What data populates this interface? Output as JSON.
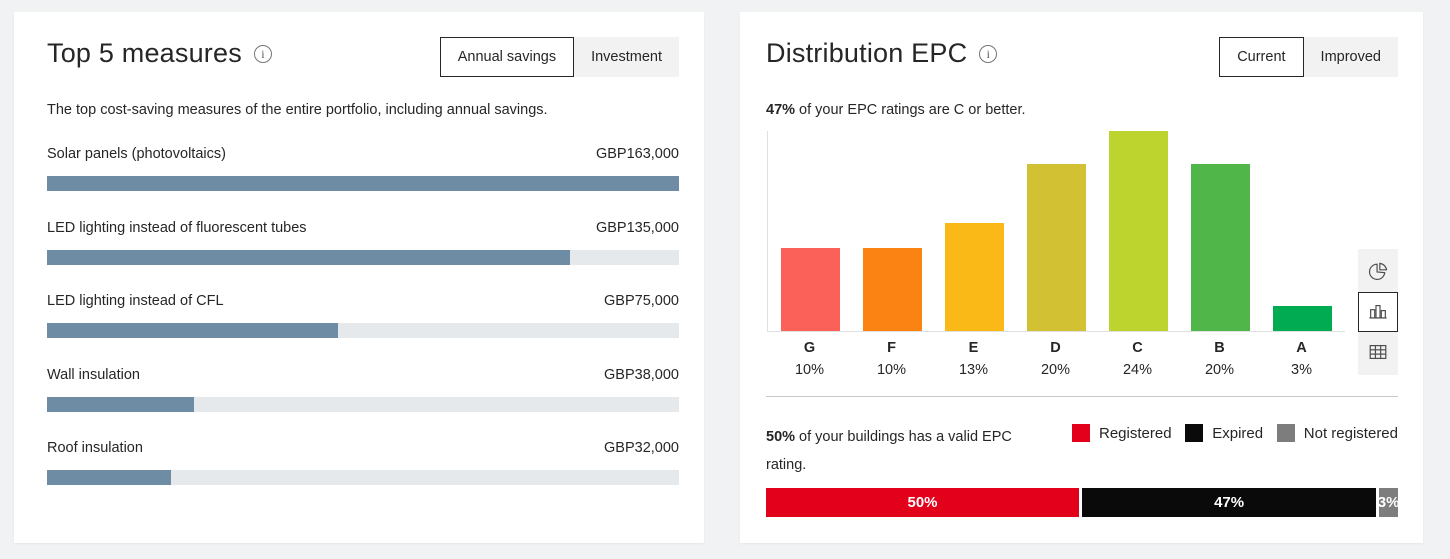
{
  "icons": {
    "info_glyph": "i"
  },
  "top_measures": {
    "title": "Top 5 measures",
    "toggle": {
      "options": [
        "Annual savings",
        "Investment"
      ],
      "selected_index": 0
    },
    "description": "The top cost-saving measures of the entire portfolio, including annual savings.",
    "bar_color": "#6e8ca4",
    "track_color": "#e6e9ec",
    "measures": [
      {
        "label": "Solar panels (photovoltaics)",
        "value": "GBP163,000",
        "pct_of_max": 100
      },
      {
        "label": "LED lighting instead of fluorescent tubes",
        "value": "GBP135,000",
        "pct_of_max": 82.8
      },
      {
        "label": "LED lighting instead of CFL",
        "value": "GBP75,000",
        "pct_of_max": 46.0
      },
      {
        "label": "Wall insulation",
        "value": "GBP38,000",
        "pct_of_max": 23.3
      },
      {
        "label": "Roof insulation",
        "value": "GBP32,000",
        "pct_of_max": 19.6
      }
    ]
  },
  "distribution_epc": {
    "title": "Distribution EPC",
    "toggle": {
      "options": [
        "Current",
        "Improved"
      ],
      "selected_index": 0
    },
    "subtitle": {
      "bold": "47%",
      "rest": " of your EPC ratings are C or better."
    },
    "chart_data": {
      "type": "bar",
      "categories": [
        "G",
        "F",
        "E",
        "D",
        "C",
        "B",
        "A"
      ],
      "values": [
        10,
        10,
        13,
        20,
        24,
        20,
        3
      ],
      "unit": "%",
      "colors": [
        "#fb6159",
        "#fb8313",
        "#fbb917",
        "#d2c233",
        "#bdd42f",
        "#51b64a",
        "#00ab51"
      ],
      "ylim": [
        0,
        24
      ],
      "grid": false,
      "axis_color": "#e0e0e0"
    },
    "chart_type_switcher": {
      "options": [
        "pie",
        "bar",
        "table"
      ],
      "selected_index": 1
    },
    "validity": {
      "text_bold": "50%",
      "text_rest": " of your buildings has a valid EPC rating.",
      "legend": [
        {
          "label": "Registered",
          "color": "#e2001a"
        },
        {
          "label": "Expired",
          "color": "#0a0a0a"
        },
        {
          "label": "Not registered",
          "color": "#7d7d7d"
        }
      ],
      "chart_data": {
        "type": "stacked-bar",
        "segments": [
          {
            "name": "Registered",
            "label": "50%",
            "value": 50,
            "color": "#e2001a"
          },
          {
            "name": "Expired",
            "label": "47%",
            "value": 47,
            "color": "#0a0a0a"
          },
          {
            "name": "Not registered",
            "label": "3%",
            "value": 3,
            "color": "#7d7d7d"
          }
        ]
      }
    }
  }
}
